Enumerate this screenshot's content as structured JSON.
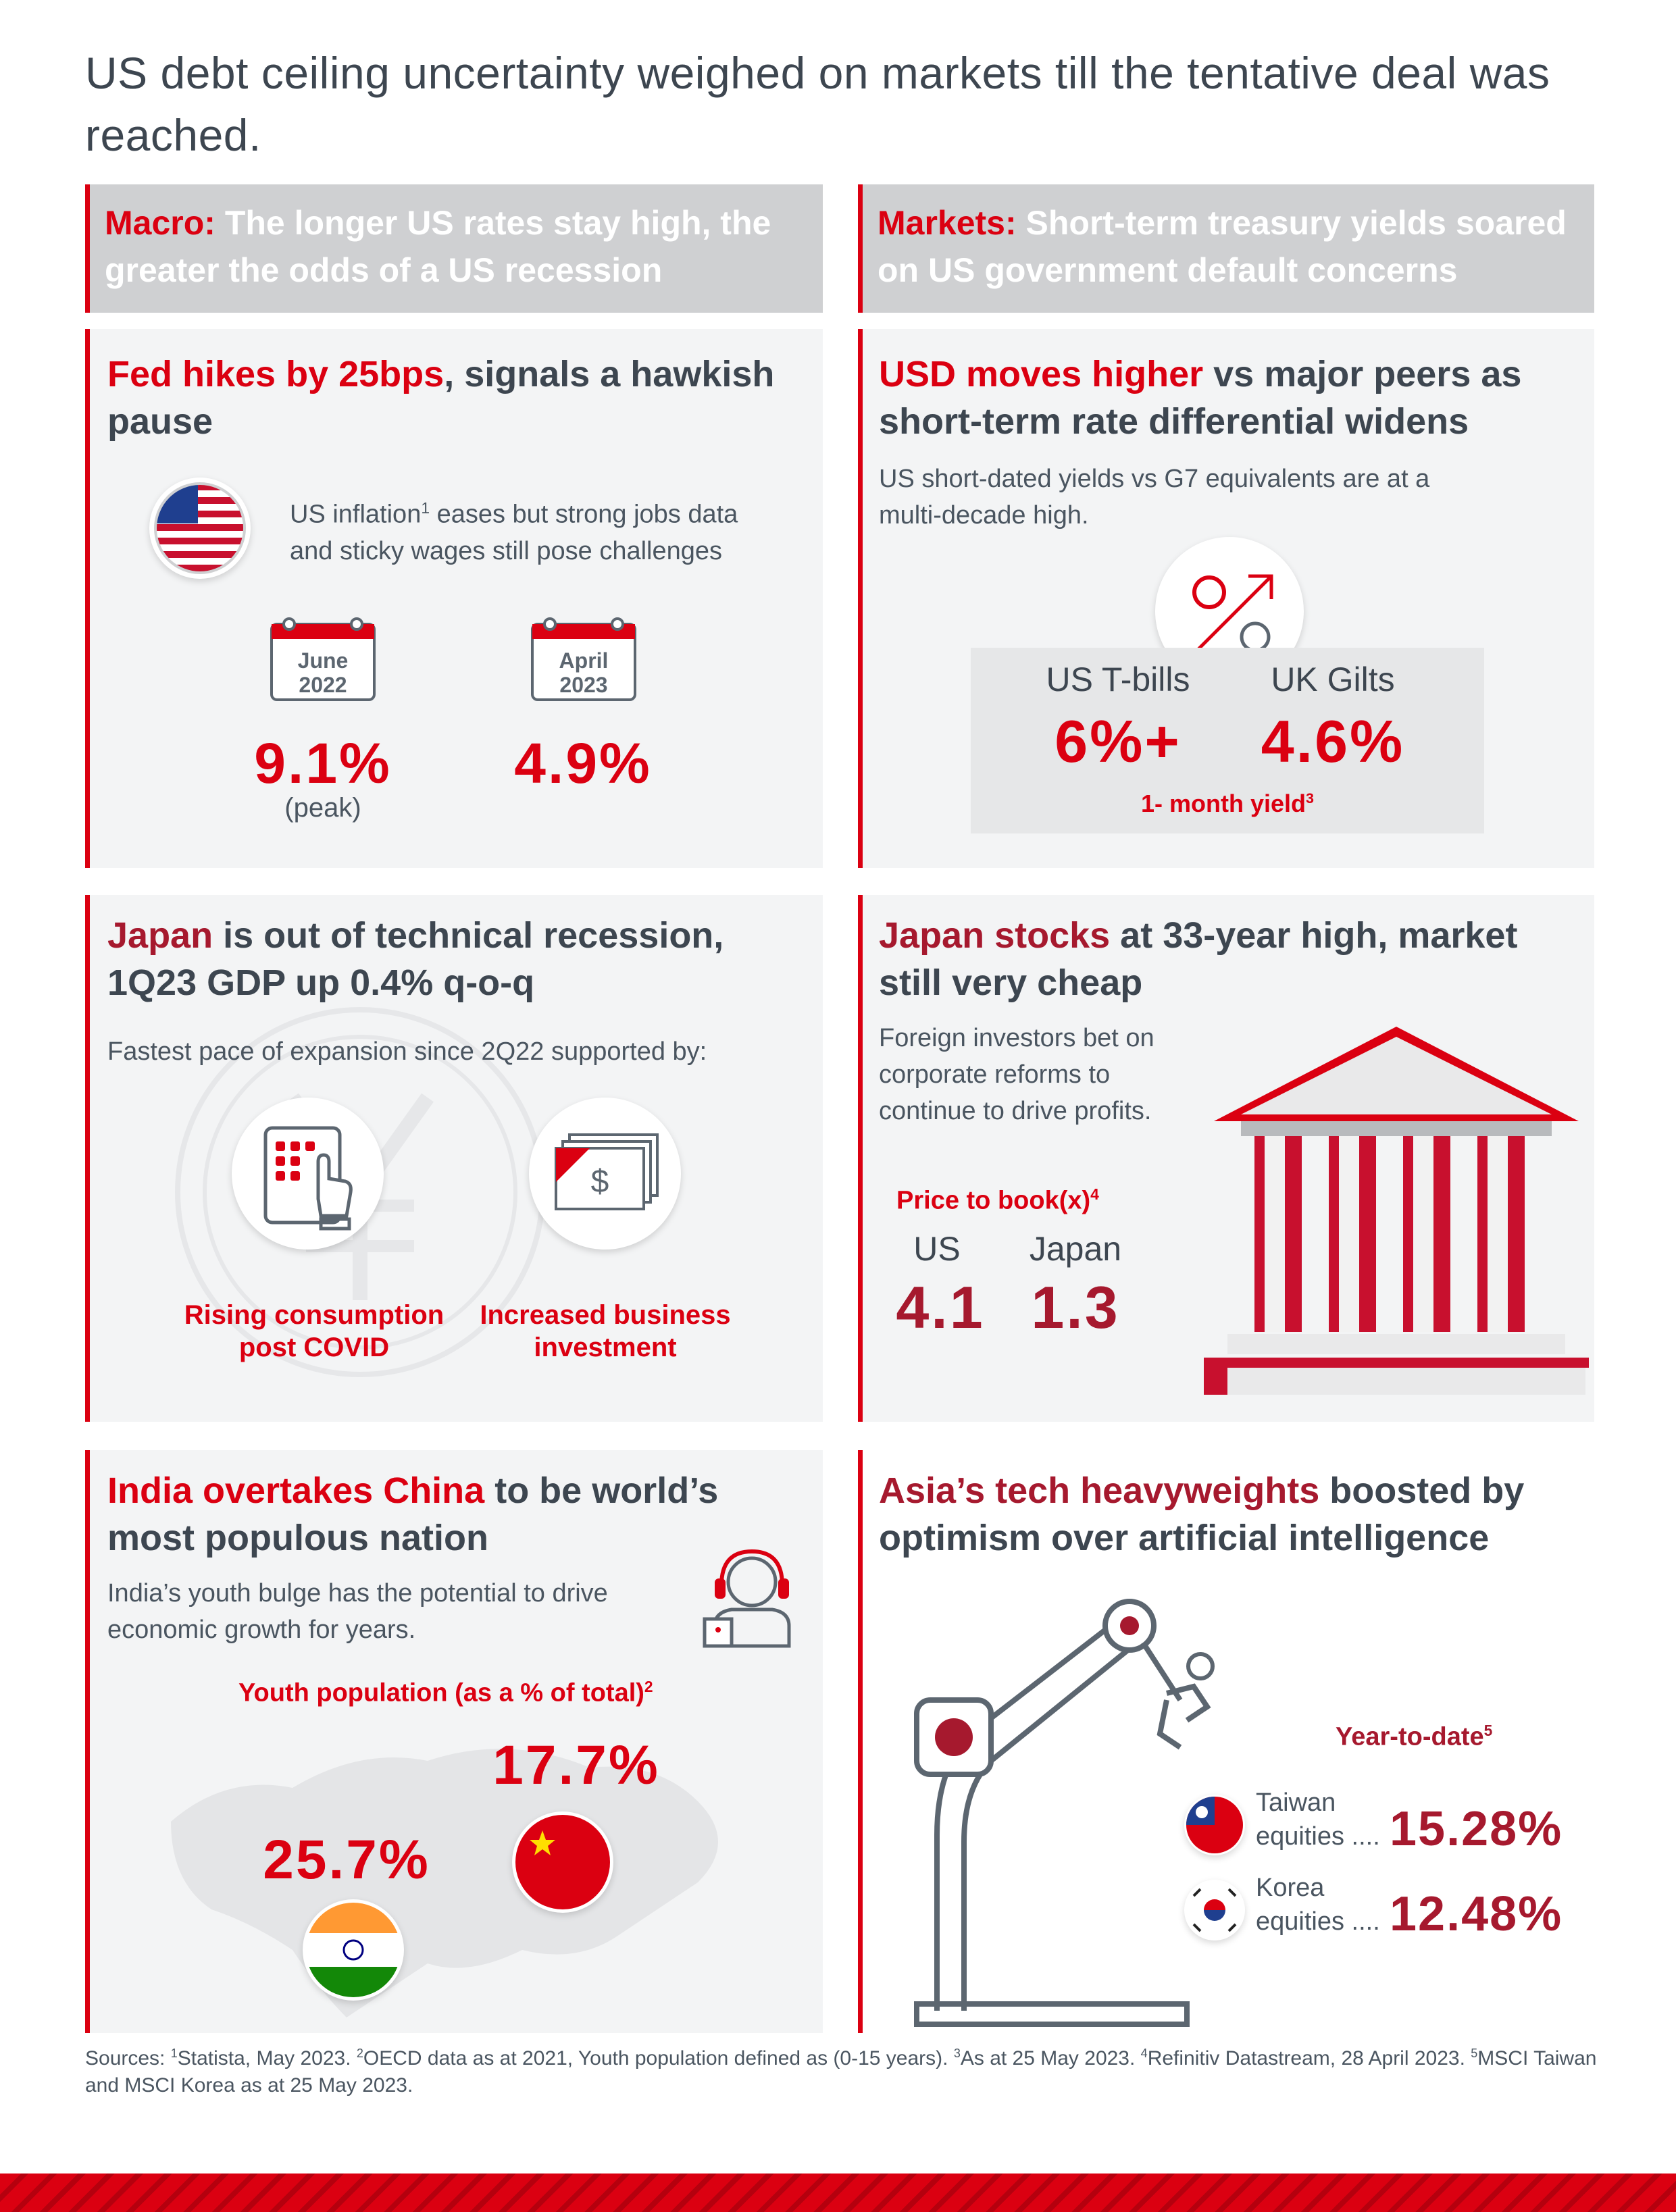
{
  "title": "US debt ceiling uncertainty weighed on markets till the tentative deal was reached.",
  "headers": {
    "macro": {
      "prefix": "Macro:",
      "text": " The longer US rates stay high, the greater the odds of a US recession"
    },
    "markets": {
      "prefix": "Markets:",
      "text": " Short-term treasury yields soared on US government default concerns"
    }
  },
  "fed": {
    "heading_red": "Fed hikes by 25bps",
    "heading_rest": ", signals a hawkish pause",
    "note_a": "US inflation",
    "note_sup": "1",
    "note_b": " eases but strong jobs data and sticky wages still pose challenges",
    "cal1_line1": "June",
    "cal1_line2": "2022",
    "cal2_line1": "April",
    "cal2_line2": "2023",
    "value1": "9.1%",
    "value1_note": "(peak)",
    "value2": "4.9%"
  },
  "usd": {
    "heading_red": "USD moves higher",
    "heading_rest": " vs major peers as short-term rate differential widens",
    "note": "US short-dated yields vs G7 equivalents are at a multi-decade high.",
    "label1": "US T-bills",
    "label2": "UK Gilts",
    "value1": "6%+",
    "value2": "4.6%",
    "caption": "1- month yield",
    "caption_sup": "3"
  },
  "japan_gdp": {
    "heading_red": "Japan",
    "heading_rest": " is out of technical recession, 1Q23 GDP up 0.4% q-o-q",
    "note": "Fastest pace of expansion since 2Q22 supported by:",
    "item1_l1": "Rising consumption",
    "item1_l2": "post COVID",
    "item2_l1": "Increased business",
    "item2_l2": "investment"
  },
  "japan_stocks": {
    "heading_red": "Japan stocks",
    "heading_rest": " at 33-year high, market still very cheap",
    "note": "Foreign investors bet on corporate reforms to continue to drive profits.",
    "pb_label": "Price to book(x)",
    "pb_sup": "4",
    "label1": "US",
    "label2": "Japan",
    "value1": "4.1",
    "value2": "1.3"
  },
  "india": {
    "heading_red": "India overtakes China",
    "heading_rest": " to be world’s most populous nation",
    "note": "India’s youth bulge has the potential to drive economic growth for years.",
    "youth_label": "Youth population (as a % of total)",
    "youth_sup": "2",
    "china_value": "17.7%",
    "india_value": "25.7%"
  },
  "asia_tech": {
    "heading_red": "Asia’s tech heavyweights",
    "heading_rest": " boosted by optimism over artificial intelligence",
    "ytd_label": "Year-to-date",
    "ytd_sup": "5",
    "taiwan_l1": "Taiwan",
    "taiwan_l2": "equities ....",
    "taiwan_value": "15.28%",
    "korea_l1": "Korea",
    "korea_l2": "equities ....",
    "korea_value": "12.48%"
  },
  "sources": {
    "a": "Sources: ",
    "s1": "1",
    "b": "Statista, May 2023. ",
    "s2": "2",
    "c": "OECD data as at 2021, Youth population defined as (0-15 years). ",
    "s3": "3",
    "d": "As at 25 May 2023. ",
    "s4": "4",
    "e": "Refinitiv Datastream, 28 April 2023. ",
    "s5": "5",
    "f": "MSCI Taiwan and MSCI Korea as at 25 May 2023."
  },
  "colors": {
    "red": "#db0011",
    "dark_red": "#a6192e",
    "text": "#3d4650",
    "panel": "#f3f4f5",
    "header": "#cfd0d2"
  }
}
